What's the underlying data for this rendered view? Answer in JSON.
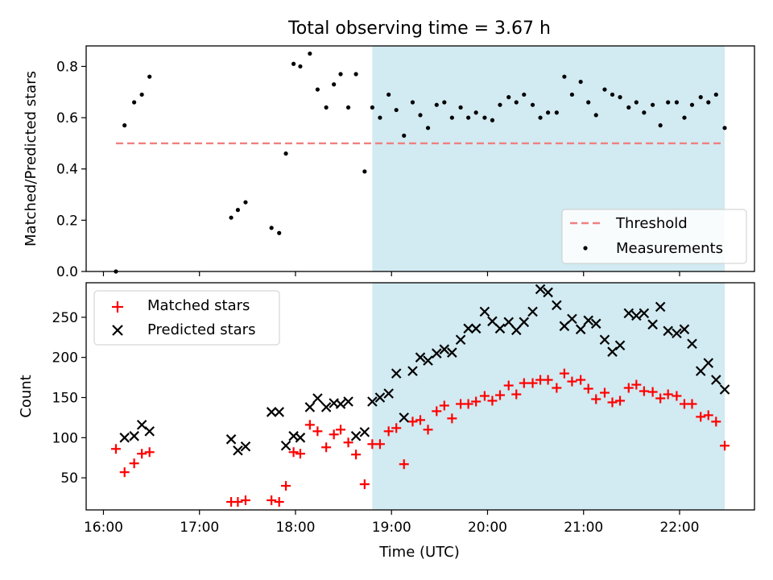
{
  "figure_title": "Total observing time = 3.67 h",
  "chart_data": [
    {
      "type": "scatter",
      "panel": "top",
      "ylabel": "Matched/Predicted stars",
      "ylim": [
        0,
        0.88
      ],
      "yticks": [
        0.0,
        0.2,
        0.4,
        0.6,
        0.8
      ],
      "ytick_labels": [
        "0.0",
        "0.2",
        "0.4",
        "0.6",
        "0.8"
      ],
      "legend_position": "lower-right",
      "highlight_span_hours": [
        18.8,
        22.47
      ],
      "highlight_color": "#add8e6",
      "threshold": {
        "name": "Threshold",
        "y": 0.5,
        "x_range_hours": [
          16.13,
          22.47
        ],
        "color": "#f08080",
        "style": "dashed"
      },
      "series": [
        {
          "name": "Measurements",
          "marker": "dot",
          "color": "#000000",
          "points": [
            [
              16.13,
              0.0
            ],
            [
              16.22,
              0.57
            ],
            [
              16.32,
              0.66
            ],
            [
              16.4,
              0.69
            ],
            [
              16.48,
              0.76
            ],
            [
              17.33,
              0.21
            ],
            [
              17.4,
              0.24
            ],
            [
              17.48,
              0.27
            ],
            [
              17.75,
              0.17
            ],
            [
              17.83,
              0.15
            ],
            [
              17.9,
              0.46
            ],
            [
              17.98,
              0.81
            ],
            [
              18.05,
              0.8
            ],
            [
              18.15,
              0.85
            ],
            [
              18.23,
              0.71
            ],
            [
              18.32,
              0.64
            ],
            [
              18.4,
              0.73
            ],
            [
              18.47,
              0.77
            ],
            [
              18.55,
              0.64
            ],
            [
              18.63,
              0.77
            ],
            [
              18.72,
              0.39
            ],
            [
              18.8,
              0.64
            ],
            [
              18.88,
              0.6
            ],
            [
              18.97,
              0.69
            ],
            [
              19.05,
              0.63
            ],
            [
              19.13,
              0.53
            ],
            [
              19.22,
              0.66
            ],
            [
              19.3,
              0.61
            ],
            [
              19.38,
              0.56
            ],
            [
              19.47,
              0.65
            ],
            [
              19.55,
              0.66
            ],
            [
              19.63,
              0.6
            ],
            [
              19.72,
              0.64
            ],
            [
              19.8,
              0.6
            ],
            [
              19.88,
              0.62
            ],
            [
              19.97,
              0.6
            ],
            [
              20.05,
              0.59
            ],
            [
              20.13,
              0.65
            ],
            [
              20.22,
              0.68
            ],
            [
              20.3,
              0.66
            ],
            [
              20.38,
              0.69
            ],
            [
              20.47,
              0.65
            ],
            [
              20.55,
              0.6
            ],
            [
              20.63,
              0.62
            ],
            [
              20.72,
              0.62
            ],
            [
              20.8,
              0.76
            ],
            [
              20.88,
              0.69
            ],
            [
              20.97,
              0.74
            ],
            [
              21.05,
              0.66
            ],
            [
              21.13,
              0.61
            ],
            [
              21.22,
              0.71
            ],
            [
              21.3,
              0.69
            ],
            [
              21.38,
              0.68
            ],
            [
              21.47,
              0.64
            ],
            [
              21.55,
              0.66
            ],
            [
              21.63,
              0.62
            ],
            [
              21.72,
              0.65
            ],
            [
              21.8,
              0.57
            ],
            [
              21.88,
              0.66
            ],
            [
              21.97,
              0.66
            ],
            [
              22.05,
              0.6
            ],
            [
              22.13,
              0.65
            ],
            [
              22.22,
              0.68
            ],
            [
              22.3,
              0.66
            ],
            [
              22.38,
              0.69
            ],
            [
              22.47,
              0.56
            ]
          ]
        }
      ]
    },
    {
      "type": "scatter",
      "panel": "bottom",
      "xlabel": "Time (UTC)",
      "ylabel": "Count",
      "xlim": [
        15.82,
        22.78
      ],
      "xticks": [
        16,
        17,
        18,
        19,
        20,
        21,
        22
      ],
      "xtick_labels": [
        "16:00",
        "17:00",
        "18:00",
        "19:00",
        "20:00",
        "21:00",
        "22:00"
      ],
      "ylim": [
        10,
        293
      ],
      "yticks": [
        50,
        100,
        150,
        200,
        250
      ],
      "ytick_labels": [
        "50",
        "100",
        "150",
        "200",
        "250"
      ],
      "legend_position": "upper-left",
      "highlight_span_hours": [
        18.8,
        22.47
      ],
      "highlight_color": "#add8e6",
      "series": [
        {
          "name": "Matched stars",
          "marker": "plus",
          "color": "#ff0000",
          "points": [
            [
              16.13,
              86
            ],
            [
              16.22,
              57
            ],
            [
              16.32,
              68
            ],
            [
              16.4,
              80
            ],
            [
              16.48,
              82
            ],
            [
              17.33,
              20
            ],
            [
              17.4,
              20
            ],
            [
              17.48,
              22
            ],
            [
              17.75,
              22
            ],
            [
              17.83,
              20
            ],
            [
              17.9,
              40
            ],
            [
              17.98,
              82
            ],
            [
              18.05,
              80
            ],
            [
              18.15,
              116
            ],
            [
              18.23,
              108
            ],
            [
              18.32,
              88
            ],
            [
              18.4,
              104
            ],
            [
              18.47,
              110
            ],
            [
              18.55,
              94
            ],
            [
              18.63,
              79
            ],
            [
              18.72,
              42
            ],
            [
              18.8,
              92
            ],
            [
              18.88,
              92
            ],
            [
              18.97,
              108
            ],
            [
              19.05,
              112
            ],
            [
              19.13,
              67
            ],
            [
              19.22,
              120
            ],
            [
              19.3,
              122
            ],
            [
              19.38,
              110
            ],
            [
              19.47,
              133
            ],
            [
              19.55,
              140
            ],
            [
              19.63,
              124
            ],
            [
              19.72,
              142
            ],
            [
              19.8,
              142
            ],
            [
              19.88,
              145
            ],
            [
              19.97,
              152
            ],
            [
              20.05,
              146
            ],
            [
              20.13,
              153
            ],
            [
              20.22,
              165
            ],
            [
              20.3,
              154
            ],
            [
              20.38,
              168
            ],
            [
              20.47,
              168
            ],
            [
              20.55,
              172
            ],
            [
              20.63,
              172
            ],
            [
              20.72,
              162
            ],
            [
              20.8,
              180
            ],
            [
              20.88,
              170
            ],
            [
              20.97,
              172
            ],
            [
              21.05,
              161
            ],
            [
              21.13,
              148
            ],
            [
              21.22,
              156
            ],
            [
              21.3,
              144
            ],
            [
              21.38,
              146
            ],
            [
              21.47,
              162
            ],
            [
              21.55,
              166
            ],
            [
              21.63,
              158
            ],
            [
              21.72,
              157
            ],
            [
              21.8,
              149
            ],
            [
              21.88,
              154
            ],
            [
              21.97,
              152
            ],
            [
              22.05,
              142
            ],
            [
              22.13,
              142
            ],
            [
              22.22,
              126
            ],
            [
              22.3,
              128
            ],
            [
              22.38,
              120
            ],
            [
              22.47,
              90
            ]
          ]
        },
        {
          "name": "Predicted stars",
          "marker": "x",
          "color": "#000000",
          "points": [
            [
              16.22,
              100
            ],
            [
              16.32,
              102
            ],
            [
              16.4,
              116
            ],
            [
              16.48,
              108
            ],
            [
              17.33,
              98
            ],
            [
              17.4,
              84
            ],
            [
              17.48,
              89
            ],
            [
              17.75,
              132
            ],
            [
              17.83,
              132
            ],
            [
              17.9,
              90
            ],
            [
              17.98,
              102
            ],
            [
              18.05,
              100
            ],
            [
              18.15,
              138
            ],
            [
              18.23,
              149
            ],
            [
              18.32,
              138
            ],
            [
              18.4,
              143
            ],
            [
              18.47,
              142
            ],
            [
              18.55,
              145
            ],
            [
              18.63,
              102
            ],
            [
              18.72,
              107
            ],
            [
              18.8,
              145
            ],
            [
              18.88,
              150
            ],
            [
              18.97,
              155
            ],
            [
              19.05,
              180
            ],
            [
              19.13,
              125
            ],
            [
              19.22,
              183
            ],
            [
              19.3,
              200
            ],
            [
              19.38,
              196
            ],
            [
              19.47,
              205
            ],
            [
              19.55,
              210
            ],
            [
              19.63,
              206
            ],
            [
              19.72,
              222
            ],
            [
              19.8,
              236
            ],
            [
              19.88,
              236
            ],
            [
              19.97,
              257
            ],
            [
              20.05,
              245
            ],
            [
              20.13,
              236
            ],
            [
              20.22,
              244
            ],
            [
              20.3,
              234
            ],
            [
              20.38,
              244
            ],
            [
              20.47,
              257
            ],
            [
              20.55,
              285
            ],
            [
              20.63,
              281
            ],
            [
              20.72,
              265
            ],
            [
              20.8,
              239
            ],
            [
              20.88,
              248
            ],
            [
              20.97,
              235
            ],
            [
              21.05,
              246
            ],
            [
              21.13,
              242
            ],
            [
              21.22,
              222
            ],
            [
              21.3,
              207
            ],
            [
              21.38,
              215
            ],
            [
              21.47,
              255
            ],
            [
              21.55,
              252
            ],
            [
              21.63,
              255
            ],
            [
              21.72,
              241
            ],
            [
              21.8,
              263
            ],
            [
              21.88,
              233
            ],
            [
              21.97,
              230
            ],
            [
              22.05,
              235
            ],
            [
              22.13,
              217
            ],
            [
              22.22,
              183
            ],
            [
              22.3,
              193
            ],
            [
              22.38,
              172
            ],
            [
              22.47,
              160
            ]
          ]
        }
      ]
    }
  ]
}
